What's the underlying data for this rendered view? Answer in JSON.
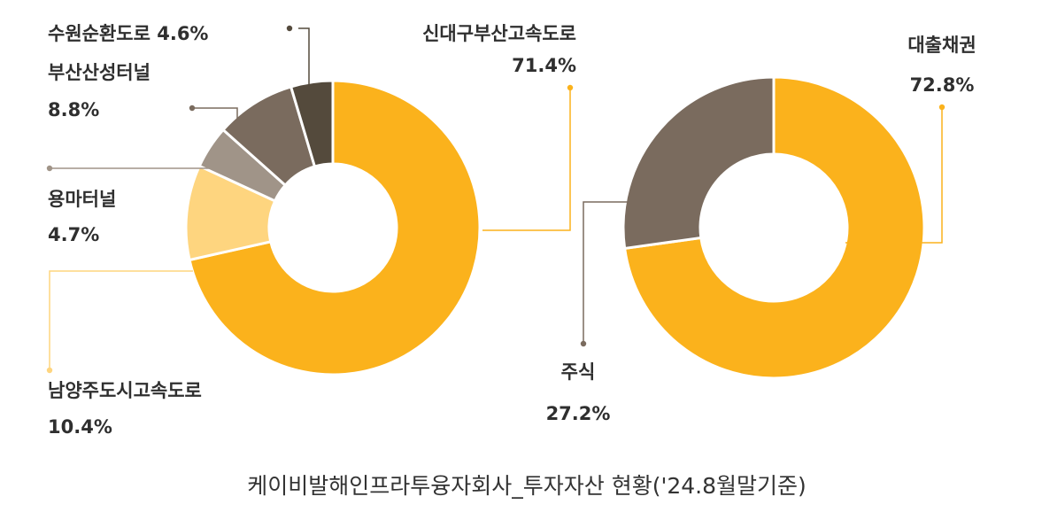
{
  "chart_data": [
    {
      "type": "pie",
      "variant": "donut",
      "title": "",
      "slices": [
        {
          "name": "신대구부산고속도로",
          "value": 71.4,
          "label": "71.4%",
          "color": "#fbb21c"
        },
        {
          "name": "남양주도시고속도로",
          "value": 10.4,
          "label": "10.4%",
          "color": "#fed57f"
        },
        {
          "name": "용마터널",
          "value": 4.7,
          "label": "4.7%",
          "color": "#a09488"
        },
        {
          "name": "부산산성터널",
          "value": 8.8,
          "label": "8.8%",
          "color": "#7a6b5e"
        },
        {
          "name": "수원순환도로",
          "value": 4.6,
          "label": "4.6%",
          "color": "#544a3c"
        }
      ]
    },
    {
      "type": "pie",
      "variant": "donut",
      "title": "",
      "slices": [
        {
          "name": "대출채권",
          "value": 72.8,
          "label": "72.8%",
          "color": "#fbb21c"
        },
        {
          "name": "주식",
          "value": 27.2,
          "label": "27.2%",
          "color": "#7a6b5e"
        }
      ]
    }
  ],
  "caption": "케이비발해인프라투융자회사_투자자산 현황('24.8월말기준)"
}
